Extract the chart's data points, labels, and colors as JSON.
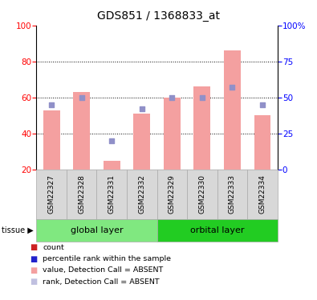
{
  "title": "GDS851 / 1368833_at",
  "samples": [
    "GSM22327",
    "GSM22328",
    "GSM22331",
    "GSM22332",
    "GSM22329",
    "GSM22330",
    "GSM22333",
    "GSM22334"
  ],
  "bar_values": [
    53,
    63,
    25,
    51,
    60,
    66,
    86,
    50
  ],
  "rank_values": [
    45,
    50,
    20,
    42,
    50,
    50,
    57,
    45
  ],
  "bar_color": "#f4a0a0",
  "rank_color": "#9090c8",
  "ylim_left": [
    20,
    100
  ],
  "ylim_right": [
    0,
    100
  ],
  "yticks_left": [
    20,
    40,
    60,
    80,
    100
  ],
  "yticks_right": [
    0,
    25,
    50,
    75,
    100
  ],
  "ytick_labels_right": [
    "0",
    "25",
    "50",
    "75",
    "100%"
  ],
  "dotted_gridlines": [
    40,
    60,
    80
  ],
  "groups_info": [
    {
      "label": "global layer",
      "start": 0,
      "end": 3,
      "color": "#80e880"
    },
    {
      "label": "orbital layer",
      "start": 4,
      "end": 7,
      "color": "#22cc22"
    }
  ],
  "tissue_label": "tissue",
  "bar_width": 0.55,
  "legend": [
    {
      "color": "#cc2222",
      "label": "count"
    },
    {
      "color": "#2222cc",
      "label": "percentile rank within the sample"
    },
    {
      "color": "#f4a0a0",
      "label": "value, Detection Call = ABSENT"
    },
    {
      "color": "#c0c0e0",
      "label": "rank, Detection Call = ABSENT"
    }
  ]
}
